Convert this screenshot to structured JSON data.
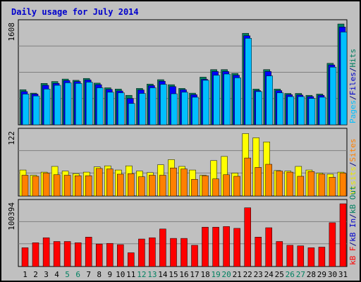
{
  "chart_data": [
    {
      "type": "bar",
      "title": "Daily usage for July 2014",
      "categories": [
        "1",
        "2",
        "3",
        "4",
        "5",
        "6",
        "7",
        "8",
        "9",
        "10",
        "11",
        "12",
        "13",
        "14",
        "15",
        "16",
        "17",
        "18",
        "19",
        "20",
        "21",
        "22",
        "23",
        "24",
        "25",
        "26",
        "27",
        "28",
        "29",
        "30",
        "31"
      ],
      "weekend_days": [
        "5",
        "6",
        "12",
        "13",
        "19",
        "20",
        "26",
        "27"
      ],
      "ylim": [
        0,
        1608
      ],
      "ymax_label": "1608",
      "right_labels": [
        {
          "text": "Pages",
          "color": "#00bfff"
        },
        {
          "text": "/",
          "color": "#000080"
        },
        {
          "text": "Files",
          "color": "#0000cc"
        },
        {
          "text": "/",
          "color": "#000080"
        },
        {
          "text": "Hits",
          "color": "#007f60"
        }
      ],
      "series": [
        {
          "name": "Hits",
          "color": "#008060",
          "values": [
            560,
            505,
            660,
            690,
            730,
            710,
            740,
            665,
            590,
            570,
            470,
            580,
            650,
            720,
            640,
            580,
            505,
            760,
            880,
            880,
            820,
            1460,
            570,
            880,
            570,
            500,
            500,
            470,
            490,
            980,
            1608
          ]
        },
        {
          "name": "Files",
          "color": "#0000ff",
          "values": [
            530,
            490,
            630,
            660,
            705,
            690,
            715,
            640,
            565,
            540,
            420,
            555,
            625,
            695,
            610,
            560,
            480,
            725,
            850,
            850,
            790,
            1420,
            545,
            850,
            545,
            480,
            475,
            450,
            470,
            955,
            1560
          ]
        },
        {
          "name": "Pages",
          "color": "#00bfff",
          "values": [
            490,
            460,
            570,
            630,
            670,
            660,
            680,
            590,
            520,
            510,
            340,
            500,
            590,
            645,
            495,
            520,
            440,
            710,
            790,
            810,
            750,
            1380,
            530,
            780,
            510,
            450,
            450,
            420,
            440,
            920,
            1480
          ]
        }
      ]
    },
    {
      "type": "bar",
      "categories": [
        "1",
        "2",
        "3",
        "4",
        "5",
        "6",
        "7",
        "8",
        "9",
        "10",
        "11",
        "12",
        "13",
        "14",
        "15",
        "16",
        "17",
        "18",
        "19",
        "20",
        "21",
        "22",
        "23",
        "24",
        "25",
        "26",
        "27",
        "28",
        "29",
        "30",
        "31"
      ],
      "ylim": [
        0,
        122
      ],
      "ymax_label": "122",
      "right_labels": [
        {
          "text": "Visits",
          "color": "#e8e800"
        },
        {
          "text": "/",
          "color": "#000080"
        },
        {
          "text": "Sites",
          "color": "#ff8000"
        }
      ],
      "series": [
        {
          "name": "Visits",
          "color": "#ffff00",
          "values": [
            50,
            40,
            46,
            57,
            48,
            43,
            46,
            56,
            58,
            50,
            58,
            48,
            45,
            60,
            70,
            57,
            50,
            40,
            68,
            76,
            44,
            120,
            112,
            104,
            49,
            48,
            57,
            50,
            44,
            42,
            46
          ]
        },
        {
          "name": "Sites",
          "color": "#ff8000",
          "values": [
            40,
            38,
            44,
            41,
            40,
            39,
            39,
            53,
            52,
            42,
            43,
            37,
            40,
            40,
            54,
            52,
            32,
            39,
            33,
            41,
            38,
            73,
            55,
            61,
            48,
            46,
            38,
            47,
            42,
            36,
            44
          ]
        }
      ]
    },
    {
      "type": "bar",
      "categories": [
        "1",
        "2",
        "3",
        "4",
        "5",
        "6",
        "7",
        "8",
        "9",
        "10",
        "11",
        "12",
        "13",
        "14",
        "15",
        "16",
        "17",
        "18",
        "19",
        "20",
        "21",
        "22",
        "23",
        "24",
        "25",
        "26",
        "27",
        "28",
        "29",
        "30",
        "31"
      ],
      "ylim": [
        0,
        100394
      ],
      "ymax_label": "100394",
      "right_labels": [
        {
          "text": "kB F",
          "color": "#ff0000"
        },
        {
          "text": "/",
          "color": "#000080"
        },
        {
          "text": "kB In",
          "color": "#0000cc"
        },
        {
          "text": "/",
          "color": "#000080"
        },
        {
          "text": "kB Out",
          "color": "#007f60"
        }
      ],
      "series": [
        {
          "name": "kB F",
          "color": "#ff0000",
          "values": [
            30000,
            38000,
            46000,
            40000,
            40000,
            38000,
            47000,
            36000,
            37000,
            35000,
            22000,
            44000,
            46000,
            60000,
            45000,
            45000,
            34000,
            63000,
            63000,
            64000,
            61000,
            94000,
            47000,
            62000,
            40000,
            34000,
            33000,
            30000,
            31000,
            70000,
            100394
          ]
        }
      ]
    }
  ]
}
